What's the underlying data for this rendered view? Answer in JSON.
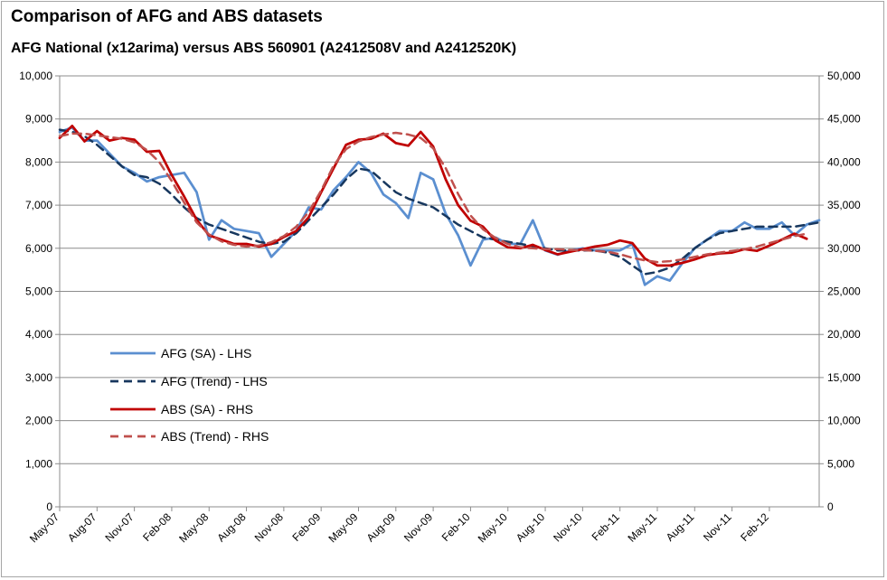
{
  "chart_data": {
    "type": "line",
    "title": "Comparison of AFG and ABS datasets",
    "subtitle": "AFG National  (x12arima) versus ABS 560901 (A2412508V and A2412520K)",
    "xlabel": "",
    "ylabel_left": "",
    "ylabel_right": "",
    "ylim_left": [
      0,
      10000
    ],
    "ylim_right": [
      0,
      50000
    ],
    "yticks_left": [
      "0",
      "1,000",
      "2,000",
      "3,000",
      "4,000",
      "5,000",
      "6,000",
      "7,000",
      "8,000",
      "9,000",
      "10,000"
    ],
    "yticks_right": [
      "0",
      "5,000",
      "10,000",
      "15,000",
      "20,000",
      "25,000",
      "30,000",
      "35,000",
      "40,000",
      "45,000",
      "50,000"
    ],
    "xticks": [
      "May-07",
      "Aug-07",
      "Nov-07",
      "Feb-08",
      "May-08",
      "Aug-08",
      "Nov-08",
      "Feb-09",
      "May-09",
      "Aug-09",
      "Nov-09",
      "Feb-10",
      "May-10",
      "Aug-10",
      "Nov-10",
      "Feb-11",
      "May-11",
      "Aug-11",
      "Nov-11",
      "Feb-12"
    ],
    "grid": true,
    "legend": "left-middle",
    "series": [
      {
        "name": "AFG (SA) - LHS",
        "axis": "left",
        "color": "#5b8fd0",
        "dash": "solid",
        "values": [
          8700,
          8800,
          8500,
          8500,
          8200,
          7900,
          7750,
          7550,
          7650,
          7700,
          7750,
          7300,
          6200,
          6650,
          6450,
          6400,
          6350,
          5800,
          6100,
          6400,
          6950,
          6900,
          7350,
          7650,
          8000,
          7750,
          7250,
          7050,
          6700,
          7750,
          7600,
          6800,
          6300,
          5600,
          6200,
          6250,
          6100,
          6100,
          6650,
          5950,
          5850,
          5950,
          6000,
          5950,
          5950,
          5950,
          6100,
          5150,
          5350,
          5250,
          5650,
          6000,
          6200,
          6400,
          6400,
          6600,
          6450,
          6450,
          6600,
          6300,
          6550,
          6650
        ]
      },
      {
        "name": "AFG (Trend) - LHS",
        "axis": "left",
        "color": "#17375e",
        "dash": "dashed",
        "values": [
          8750,
          8700,
          8600,
          8400,
          8150,
          7900,
          7700,
          7650,
          7500,
          7250,
          6950,
          6700,
          6550,
          6450,
          6350,
          6250,
          6150,
          6100,
          6150,
          6350,
          6650,
          6950,
          7250,
          7600,
          7850,
          7800,
          7550,
          7300,
          7150,
          7050,
          6950,
          6750,
          6550,
          6400,
          6250,
          6200,
          6150,
          6100,
          6050,
          6000,
          5950,
          5950,
          5950,
          5950,
          5900,
          5800,
          5600,
          5400,
          5450,
          5550,
          5750,
          6000,
          6200,
          6350,
          6400,
          6450,
          6500,
          6500,
          6500,
          6500,
          6550,
          6600
        ]
      },
      {
        "name": "ABS (SA) - RHS",
        "axis": "right",
        "color": "#c00000",
        "dash": "solid",
        "values": [
          42800,
          44200,
          42400,
          43600,
          42500,
          42800,
          42600,
          41200,
          41300,
          38500,
          36000,
          33300,
          31500,
          31000,
          30500,
          30500,
          30200,
          30500,
          31300,
          32000,
          33600,
          36500,
          39300,
          42000,
          42600,
          42700,
          43300,
          42200,
          41900,
          43500,
          41800,
          38000,
          35000,
          33200,
          32500,
          30900,
          30100,
          30000,
          30400,
          29800,
          29300,
          29600,
          29900,
          30200,
          30400,
          30900,
          30600,
          28800,
          28000,
          28000,
          28300,
          28700,
          29200,
          29400,
          29500,
          29900,
          29700,
          30300,
          31000,
          31700,
          31100
        ]
      },
      {
        "name": "ABS (Trend) - RHS",
        "axis": "right",
        "color": "#c0504d",
        "dash": "dashed",
        "values": [
          43000,
          43300,
          43300,
          43100,
          42900,
          42700,
          42300,
          41400,
          40000,
          37800,
          35300,
          33000,
          31600,
          30800,
          30400,
          30200,
          30300,
          30700,
          31400,
          32500,
          34200,
          36700,
          39600,
          41500,
          42400,
          42900,
          43200,
          43400,
          43200,
          42800,
          41600,
          39300,
          36300,
          33800,
          32200,
          31200,
          30500,
          30100,
          30000,
          29900,
          29900,
          29800,
          29800,
          29700,
          29600,
          29300,
          28900,
          28600,
          28400,
          28500,
          28700,
          29000,
          29300,
          29500,
          29700,
          29900,
          30200,
          30600,
          31000,
          31400,
          31700
        ]
      }
    ]
  }
}
